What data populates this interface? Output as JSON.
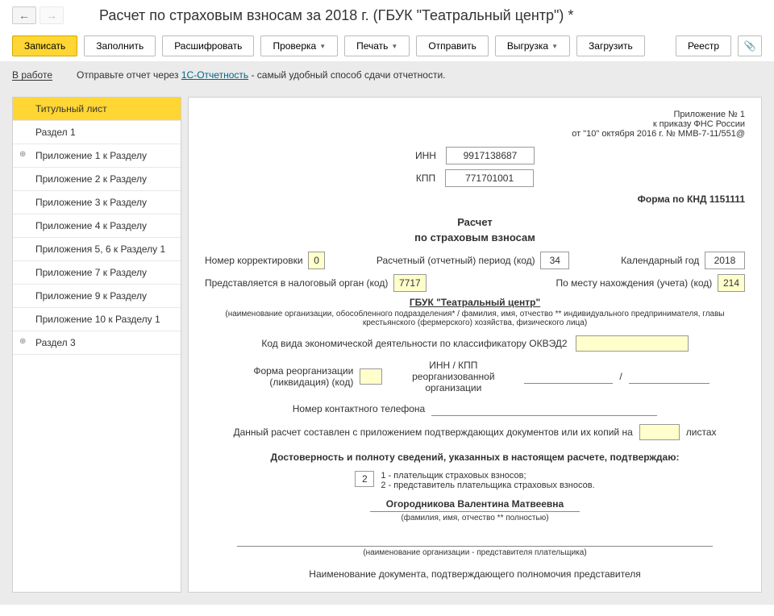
{
  "title": "Расчет по страховым взносам за 2018 г. (ГБУК \"Театральный центр\") *",
  "nav": {
    "back": "←",
    "fwd": "→"
  },
  "toolbar": {
    "write": "Записать",
    "fill": "Заполнить",
    "decrypt": "Расшифровать",
    "check": "Проверка",
    "print": "Печать",
    "send": "Отправить",
    "export": "Выгрузка",
    "load": "Загрузить",
    "registry": "Реестр"
  },
  "info": {
    "status": "В работе",
    "pre": "Отправьте отчет через ",
    "link": "1С-Отчетность",
    "post": " - самый удобный способ сдачи отчетности."
  },
  "sidebar": [
    "Титульный лист",
    "Раздел 1",
    "Приложение 1 к Разделу",
    "Приложение 2 к Разделу",
    "Приложение 3 к Разделу",
    "Приложение 4 к Разделу",
    "Приложения 5, 6 к Разделу 1",
    "Приложение 7 к Разделу",
    "Приложение 9 к Разделу",
    "Приложение 10 к Разделу 1",
    "Раздел 3"
  ],
  "sidebar_active": 0,
  "sidebar_expandable": [
    2,
    10
  ],
  "header": {
    "l1": "Приложение № 1",
    "l2": "к приказу ФНС России",
    "l3": "от \"10\" октября 2016 г. № ММВ-7-11/551@"
  },
  "inn": {
    "label": "ИНН",
    "value": "9917138687",
    "width": 110
  },
  "kpp": {
    "label": "КПП",
    "value": "771701001",
    "width": 110
  },
  "knd": "Форма по КНД 1151111",
  "doc_title1": "Расчет",
  "doc_title2": "по страховым взносам",
  "row1": {
    "corr_label": "Номер корректировки",
    "corr": "0",
    "period_label": "Расчетный (отчетный) период (код)",
    "period": "34",
    "year_label": "Календарный год",
    "year": "2018"
  },
  "row2": {
    "tax_label": "Представляется в налоговый орган (код)",
    "tax": "7717",
    "loc_label": "По месту нахождения (учета) (код)",
    "loc": "214"
  },
  "org": {
    "name": "ГБУК \"Театральный центр\"",
    "hint": "(наименование организации, обособленного подразделения* / фамилия, имя, отчество ** индивидуального предпринимателя, главы крестьянского (фермерского) хозяйства, физического лица)"
  },
  "okved_label": "Код вида экономической деятельности по классификатору ОКВЭД2",
  "reorg": {
    "form_label": "Форма реорганизации (ликвидация) (код)",
    "innkpp_label": "ИНН / КПП реорганизованной организации",
    "sep": "/"
  },
  "phone_label": "Номер контактного телефона",
  "docs": {
    "pre": "Данный расчет составлен с приложением подтверждающих документов или их копий на",
    "post": "листах"
  },
  "confirm": "Достоверность и полноту сведений, указанных в настоящем расчете, подтверждаю:",
  "signer": {
    "code": "2",
    "opt1": "1 - плательщик страховых взносов;",
    "opt2": "2 - представитель плательщика страховых взносов.",
    "name": "Огородникова Валентина Матвеевна",
    "name_hint": "(фамилия, имя, отчество ** полностью)",
    "repr_hint": "(наименование организации - представителя плательщика)"
  },
  "footer": "Наименование документа, подтверждающего полномочия представителя"
}
